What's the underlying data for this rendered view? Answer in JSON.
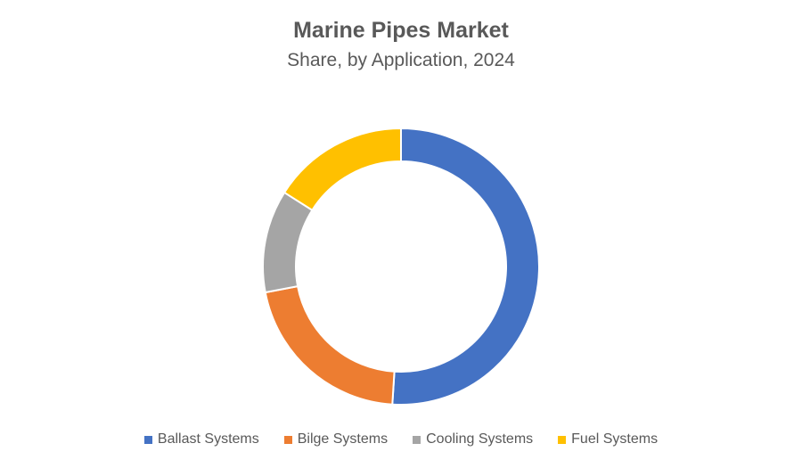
{
  "chart_data": {
    "type": "pie",
    "variant": "donut",
    "title": "Marine Pipes Market",
    "subtitle": "Share, by Application, 2024",
    "categories": [
      "Ballast Systems",
      "Bilge Systems",
      "Cooling Systems",
      "Fuel Systems"
    ],
    "values": [
      51,
      21,
      12,
      16
    ],
    "colors": [
      "#4472C4",
      "#ED7D31",
      "#A5A5A5",
      "#FFC000"
    ],
    "legend_position": "bottom",
    "data_labels": false
  }
}
